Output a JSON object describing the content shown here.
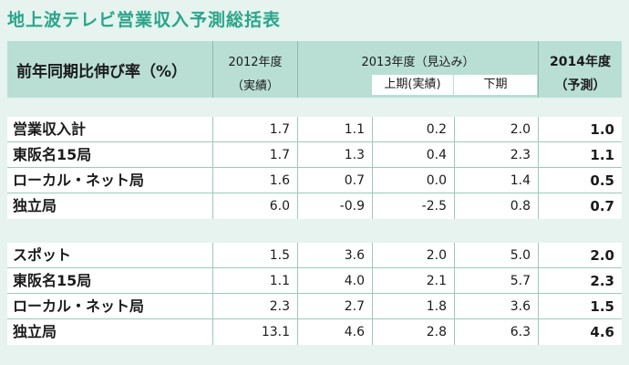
{
  "title": "地上波テレビ営業収入予測総括表",
  "header": {
    "main_label": "前年同期比伸び率（%）",
    "col2012_line1": "2012年度",
    "col2012_line2": "（実績）",
    "col2013": "2013年度（見込み）",
    "col2013_first": "上期(実績)",
    "col2013_second": "下期",
    "col2014_line1": "2014年度",
    "col2014_line2": "（予測）"
  },
  "group1": [
    {
      "label": "営業収入計",
      "v2012": "1.7",
      "v2013": "1.1",
      "first": "0.2",
      "second": "2.0",
      "v2014": "1.0"
    },
    {
      "label": "東阪名15局",
      "v2012": "1.7",
      "v2013": "1.3",
      "first": "0.4",
      "second": "2.3",
      "v2014": "1.1"
    },
    {
      "label": "ローカル・ネット局",
      "v2012": "1.6",
      "v2013": "0.7",
      "first": "0.0",
      "second": "1.4",
      "v2014": "0.5"
    },
    {
      "label": "独立局",
      "v2012": "6.0",
      "v2013": "-0.9",
      "first": "-2.5",
      "second": "0.8",
      "v2014": "0.7"
    }
  ],
  "group2": [
    {
      "label": "スポット",
      "v2012": "1.5",
      "v2013": "3.6",
      "first": "2.0",
      "second": "5.0",
      "v2014": "2.0"
    },
    {
      "label": "東阪名15局",
      "v2012": "1.1",
      "v2013": "4.0",
      "first": "2.1",
      "second": "5.7",
      "v2014": "2.3"
    },
    {
      "label": "ローカル・ネット局",
      "v2012": "2.3",
      "v2013": "2.7",
      "first": "1.8",
      "second": "3.6",
      "v2014": "1.5"
    },
    {
      "label": "独立局",
      "v2012": "13.1",
      "v2013": "4.6",
      "first": "2.8",
      "second": "6.3",
      "v2014": "4.6"
    }
  ]
}
